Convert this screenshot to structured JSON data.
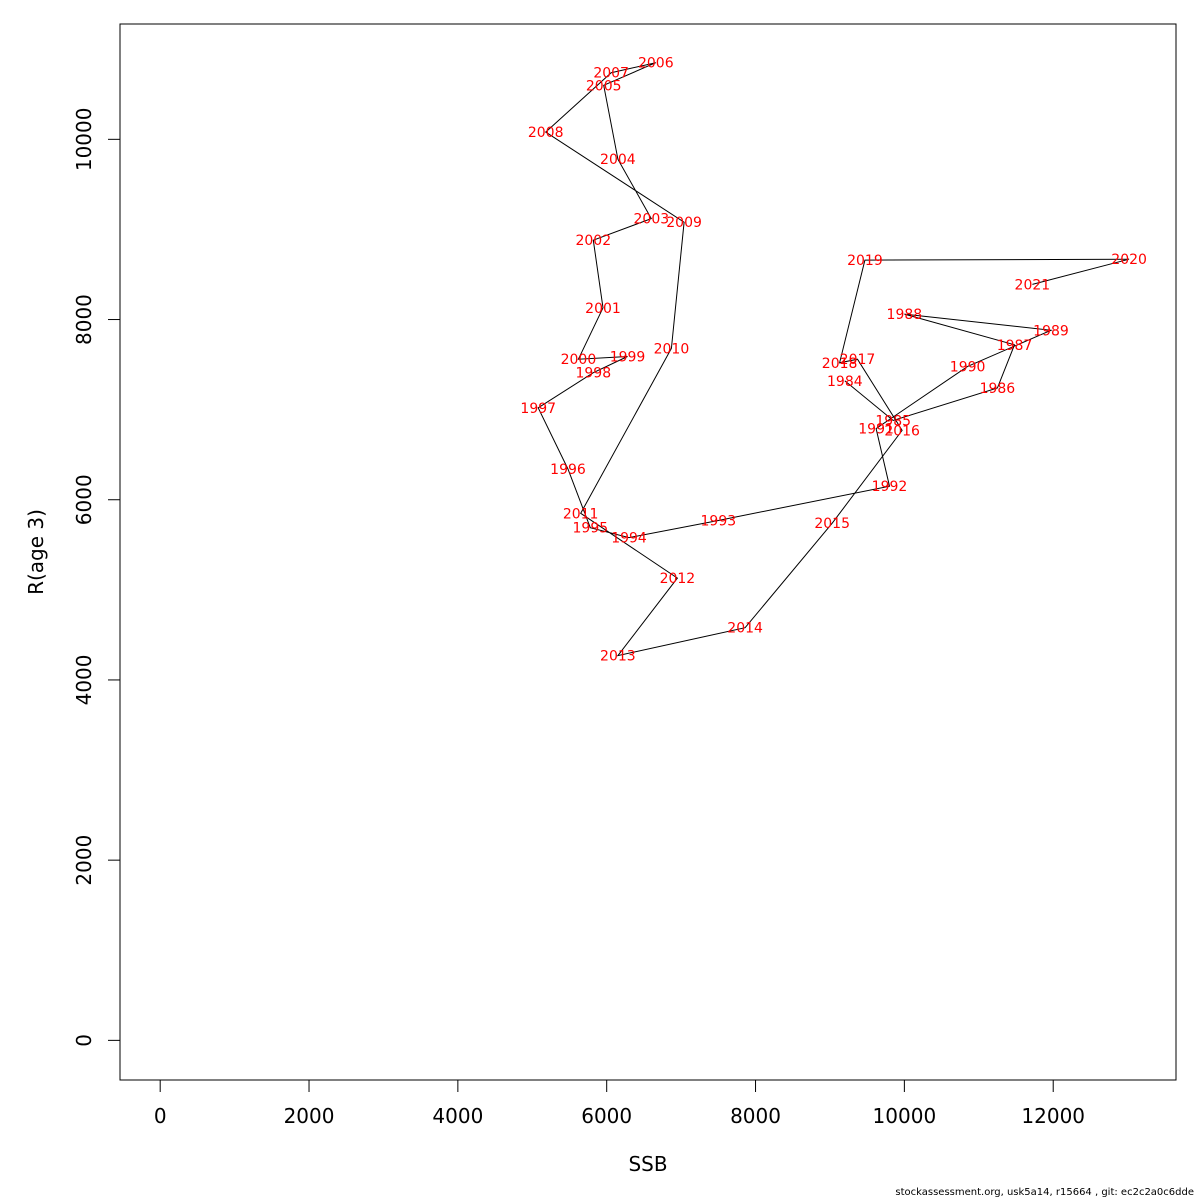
{
  "chart_data": {
    "type": "line",
    "xlabel": "SSB",
    "ylabel": "R(age 3)",
    "xlim": [
      -540,
      13650
    ],
    "ylim": [
      -440,
      11280
    ],
    "x_ticks": [
      0,
      2000,
      4000,
      6000,
      8000,
      10000,
      12000
    ],
    "y_ticks": [
      0,
      2000,
      4000,
      6000,
      8000,
      10000
    ],
    "grid": false,
    "legend": "none",
    "label_color": "#ff0000",
    "line_color": "#000000",
    "points": [
      {
        "year": "1984",
        "x": 9200,
        "y": 7320
      },
      {
        "year": "1985",
        "x": 9850,
        "y": 6880
      },
      {
        "year": "1986",
        "x": 11250,
        "y": 7240
      },
      {
        "year": "1987",
        "x": 11480,
        "y": 7720
      },
      {
        "year": "1988",
        "x": 10000,
        "y": 8060
      },
      {
        "year": "1989",
        "x": 11970,
        "y": 7880
      },
      {
        "year": "1990",
        "x": 10850,
        "y": 7480
      },
      {
        "year": "1991",
        "x": 9620,
        "y": 6790
      },
      {
        "year": "1992",
        "x": 9800,
        "y": 6150
      },
      {
        "year": "1993",
        "x": 7500,
        "y": 5770
      },
      {
        "year": "1994",
        "x": 6300,
        "y": 5580
      },
      {
        "year": "1995",
        "x": 5780,
        "y": 5690
      },
      {
        "year": "1996",
        "x": 5480,
        "y": 6340
      },
      {
        "year": "1997",
        "x": 5080,
        "y": 7020
      },
      {
        "year": "1998",
        "x": 5820,
        "y": 7410
      },
      {
        "year": "1999",
        "x": 6280,
        "y": 7590
      },
      {
        "year": "2000",
        "x": 5620,
        "y": 7560
      },
      {
        "year": "2001",
        "x": 5950,
        "y": 8130
      },
      {
        "year": "2002",
        "x": 5820,
        "y": 8880
      },
      {
        "year": "2003",
        "x": 6600,
        "y": 9120
      },
      {
        "year": "2004",
        "x": 6150,
        "y": 9780
      },
      {
        "year": "2005",
        "x": 5960,
        "y": 10600
      },
      {
        "year": "2006",
        "x": 6660,
        "y": 10850
      },
      {
        "year": "2007",
        "x": 6060,
        "y": 10740
      },
      {
        "year": "2008",
        "x": 5180,
        "y": 10080
      },
      {
        "year": "2009",
        "x": 7040,
        "y": 9080
      },
      {
        "year": "2010",
        "x": 6870,
        "y": 7680
      },
      {
        "year": "2011",
        "x": 5650,
        "y": 5850
      },
      {
        "year": "2012",
        "x": 6950,
        "y": 5130
      },
      {
        "year": "2013",
        "x": 6150,
        "y": 4270
      },
      {
        "year": "2014",
        "x": 7860,
        "y": 4580
      },
      {
        "year": "2015",
        "x": 9030,
        "y": 5740
      },
      {
        "year": "2016",
        "x": 9970,
        "y": 6770
      },
      {
        "year": "2017",
        "x": 9370,
        "y": 7560
      },
      {
        "year": "2018",
        "x": 9130,
        "y": 7520
      },
      {
        "year": "2019",
        "x": 9470,
        "y": 8660
      },
      {
        "year": "2020",
        "x": 13020,
        "y": 8670
      },
      {
        "year": "2021",
        "x": 11720,
        "y": 8390
      }
    ]
  },
  "footer": "stockassessment.org, usk5a14, r15664 , git: ec2c2a0c6dde"
}
